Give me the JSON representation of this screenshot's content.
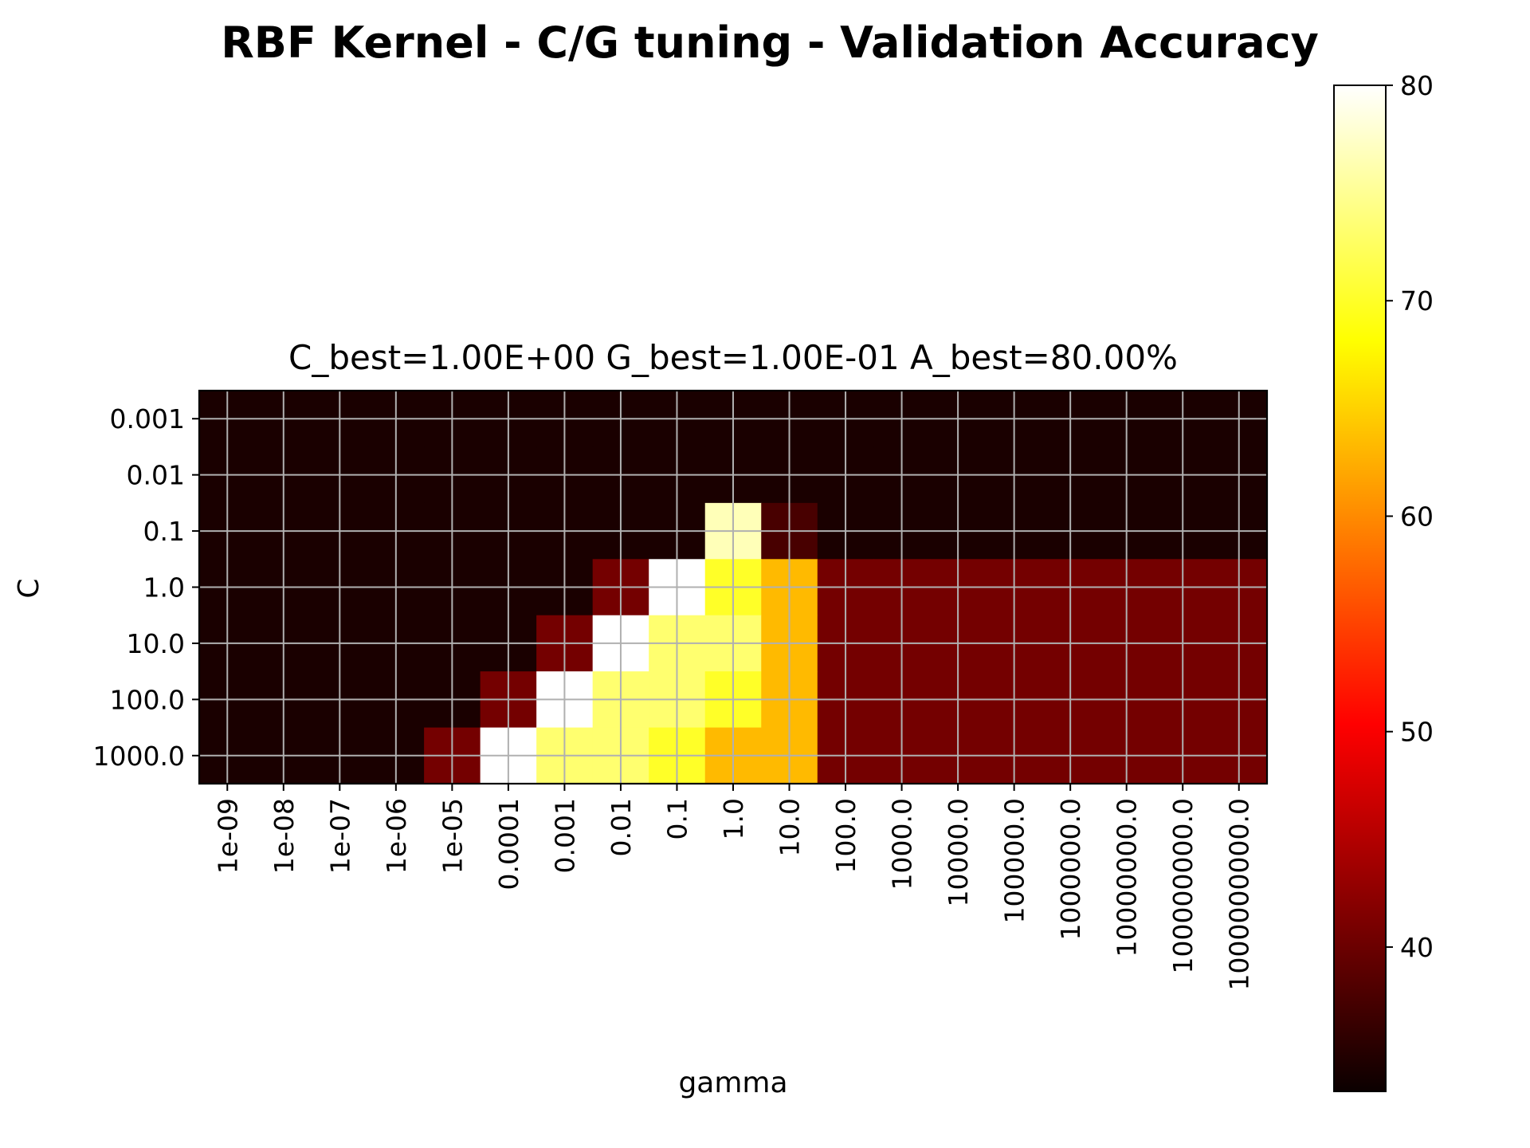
{
  "chart_data": {
    "type": "heatmap",
    "title": "RBF Kernel - C/G tuning - Validation Accuracy",
    "subtitle": "C_best=1.00E+00 G_best=1.00E-01 A_best=80.00%",
    "xlabel": "gamma",
    "ylabel": "C",
    "x_categories": [
      "1e-09",
      "1e-08",
      "1e-07",
      "1e-06",
      "1e-05",
      "0.0001",
      "0.001",
      "0.01",
      "0.1",
      "1.0",
      "10.0",
      "100.0",
      "1000.0",
      "10000.0",
      "100000.0",
      "1000000.0",
      "10000000.0",
      "100000000.0",
      "1000000000.0"
    ],
    "y_categories": [
      "0.001",
      "0.01",
      "0.1",
      "1.0",
      "10.0",
      "100.0",
      "1000.0"
    ],
    "values": [
      [
        33.3,
        33.3,
        33.3,
        33.3,
        33.3,
        33.3,
        33.3,
        33.3,
        33.3,
        33.3,
        33.3,
        33.3,
        33.3,
        33.3,
        33.3,
        33.3,
        33.3,
        33.3,
        33.3
      ],
      [
        33.3,
        33.3,
        33.3,
        33.3,
        33.3,
        33.3,
        33.3,
        33.3,
        33.3,
        33.3,
        33.3,
        33.3,
        33.3,
        33.3,
        33.3,
        33.3,
        33.3,
        33.3,
        33.3
      ],
      [
        33.3,
        33.3,
        33.3,
        33.3,
        33.3,
        33.3,
        33.3,
        33.3,
        33.3,
        76.7,
        36.7,
        33.3,
        33.3,
        33.3,
        33.3,
        33.3,
        33.3,
        33.3,
        33.3
      ],
      [
        33.3,
        33.3,
        33.3,
        33.3,
        33.3,
        33.3,
        33.3,
        40.0,
        80.0,
        70.0,
        63.3,
        40.0,
        40.0,
        40.0,
        40.0,
        40.0,
        40.0,
        40.0,
        40.0
      ],
      [
        33.3,
        33.3,
        33.3,
        33.3,
        33.3,
        33.3,
        40.0,
        80.0,
        73.3,
        73.3,
        63.3,
        40.0,
        40.0,
        40.0,
        40.0,
        40.0,
        40.0,
        40.0,
        40.0
      ],
      [
        33.3,
        33.3,
        33.3,
        33.3,
        33.3,
        40.0,
        80.0,
        73.3,
        73.3,
        70.0,
        63.3,
        40.0,
        40.0,
        40.0,
        40.0,
        40.0,
        40.0,
        40.0,
        40.0
      ],
      [
        33.3,
        33.3,
        33.3,
        33.3,
        40.0,
        80.0,
        73.3,
        73.3,
        70.0,
        63.3,
        63.3,
        40.0,
        40.0,
        40.0,
        40.0,
        40.0,
        40.0,
        40.0,
        40.0
      ]
    ],
    "colormap": "hot",
    "colorbar": {
      "vmin": 33.3,
      "vmax": 80,
      "ticks": [
        40,
        50,
        60,
        70,
        80
      ],
      "tick_labels": [
        "40",
        "50",
        "60",
        "70",
        "80"
      ]
    },
    "grid": true,
    "grid_color": "#b0b0b0"
  }
}
